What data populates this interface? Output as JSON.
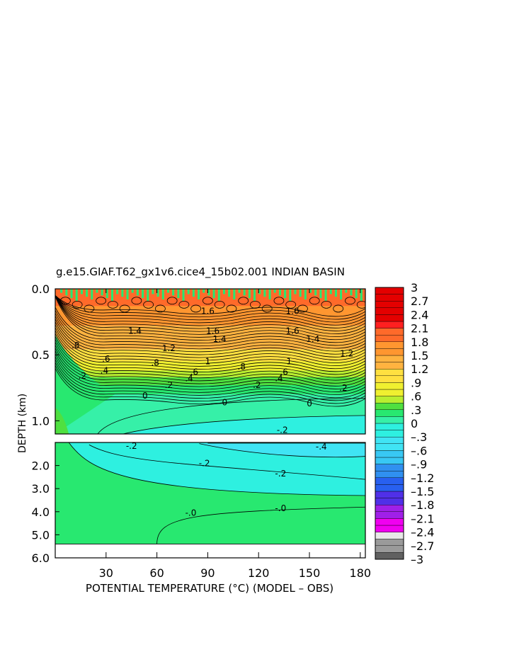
{
  "chart_data": {
    "type": "heatmap",
    "title": "g.e15.GIAF.T62_gx1v6.cice4_15b02.001 INDIAN BASIN",
    "xlabel": "POTENTIAL TEMPERATURE (°C) (MODEL – OBS)",
    "ylabel": "DEPTH (km)",
    "xlim": [
      0,
      183
    ],
    "x_ticks": [
      30,
      60,
      90,
      120,
      150,
      180
    ],
    "x_tick_labels": [
      "30",
      "60",
      "90",
      "120",
      "150",
      "180"
    ],
    "upper_panel": {
      "ylim": [
        0.0,
        1.1
      ],
      "y_ticks": [
        0.0,
        0.5,
        1.0
      ],
      "y_tick_labels": [
        "0.0",
        "0.5",
        "1.0"
      ],
      "contour_labels": [
        {
          "text": "1.4",
          "x": 47,
          "depth": 0.32
        },
        {
          "text": "1.6",
          "x": 90,
          "depth": 0.17
        },
        {
          "text": "1.6",
          "x": 93,
          "depth": 0.32
        },
        {
          "text": "1.4",
          "x": 97,
          "depth": 0.38
        },
        {
          "text": "1.6",
          "x": 140,
          "depth": 0.17
        },
        {
          "text": "1.6",
          "x": 140,
          "depth": 0.32
        },
        {
          "text": "1.4",
          "x": 152,
          "depth": 0.38
        },
        {
          "text": "1.2",
          "x": 67,
          "depth": 0.45
        },
        {
          "text": "1.2",
          "x": 172,
          "depth": 0.49
        },
        {
          "text": "1",
          "x": 90,
          "depth": 0.55
        },
        {
          "text": "1",
          "x": 138,
          "depth": 0.55
        },
        {
          "text": ".8",
          "x": 12,
          "depth": 0.43
        },
        {
          "text": ".8",
          "x": 59,
          "depth": 0.56
        },
        {
          "text": ".8",
          "x": 110,
          "depth": 0.59
        },
        {
          "text": ".6",
          "x": 30,
          "depth": 0.53
        },
        {
          "text": ".6",
          "x": 82,
          "depth": 0.63
        },
        {
          "text": ".6",
          "x": 135,
          "depth": 0.63
        },
        {
          "text": ".4",
          "x": 29,
          "depth": 0.62
        },
        {
          "text": ".4",
          "x": 79,
          "depth": 0.68
        },
        {
          "text": ".4",
          "x": 132,
          "depth": 0.68
        },
        {
          "text": ".2",
          "x": 16,
          "depth": 0.66
        },
        {
          "text": ".2",
          "x": 67,
          "depth": 0.73
        },
        {
          "text": ".2",
          "x": 119,
          "depth": 0.73
        },
        {
          "text": ".2",
          "x": 170,
          "depth": 0.75
        },
        {
          "text": "0",
          "x": 53,
          "depth": 0.81
        },
        {
          "text": "0",
          "x": 100,
          "depth": 0.86
        },
        {
          "text": "0",
          "x": 150,
          "depth": 0.87
        },
        {
          "text": "-.2",
          "x": 134,
          "depth": 1.07
        }
      ]
    },
    "lower_panel": {
      "ylim": [
        1.0,
        6.0
      ],
      "y_ticks": [
        2.0,
        3.0,
        4.0,
        5.0,
        6.0
      ],
      "y_tick_labels": [
        "2.0",
        "3.0",
        "4.0",
        "5.0",
        "6.0"
      ],
      "contour_labels": [
        {
          "text": "-.2",
          "x": 45,
          "depth": 1.15
        },
        {
          "text": "-.4",
          "x": 157,
          "depth": 1.18
        },
        {
          "text": "-.2",
          "x": 88,
          "depth": 1.9
        },
        {
          "text": "-.2",
          "x": 133,
          "depth": 2.35
        },
        {
          "text": "-.0",
          "x": 80,
          "depth": 4.05
        },
        {
          "text": "-.0",
          "x": 133,
          "depth": 3.85
        }
      ]
    },
    "colorbar": {
      "min": -3,
      "max": 3,
      "step": 0.15,
      "tick_labels": [
        "3",
        "2.7",
        "2.4",
        "2.1",
        "1.8",
        "1.5",
        "1.2",
        ".9",
        ".6",
        ".3",
        "0",
        "–.3",
        "–.6",
        "–.9",
        "–1.2",
        "–1.5",
        "–1.8",
        "–2.1",
        "–2.4",
        "–2.7",
        "–3"
      ],
      "colors": {
        "3": "#b40000",
        "2.25": "#e40000",
        "2.1": "#ff2020",
        "1.8": "#ff6a2a",
        "1.5": "#ff9630",
        "1.2": "#ffb340",
        "0.9": "#ffe040",
        "0.6": "#f0f030",
        "0.45": "#b9ee30",
        "0.3": "#4fe040",
        "0.15": "#28e870",
        "0": "#36f0a8",
        "-0.3": "#2ef0e0",
        "-0.6": "#40e4f4",
        "-0.9": "#38c8f4",
        "-1.2": "#3090f0",
        "-1.5": "#2860f0",
        "-1.8": "#5030e8",
        "-2.1": "#a020e8",
        "-2.4": "#f000f0",
        "-2.55": "#e8e8e8",
        "-2.85": "#9a9a9a",
        "-3": "#606060"
      }
    },
    "missing_data_color": "#ffffff",
    "contour_color": "#000000"
  }
}
